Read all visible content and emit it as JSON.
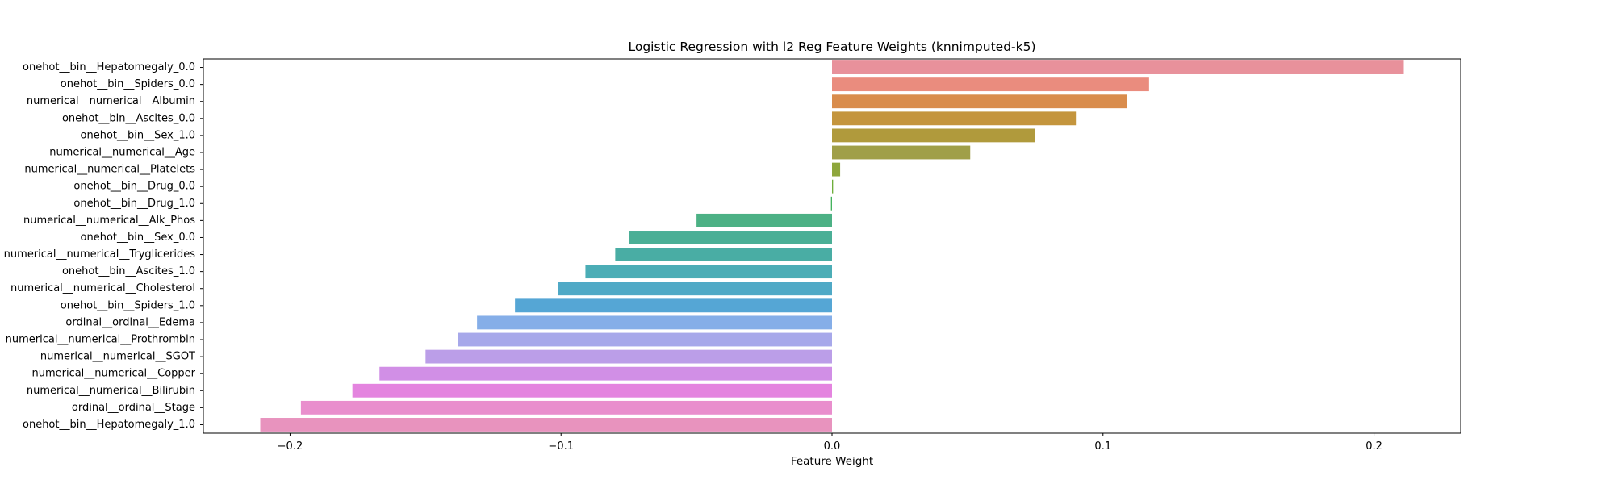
{
  "chart_data": {
    "type": "bar",
    "orientation": "horizontal",
    "title": "Logistic Regression with l2 Reg Feature Weights (knnimputed-k5)",
    "xlabel": "Feature Weight",
    "ylabel": "",
    "xlim": [
      -0.232,
      0.232
    ],
    "xticks": [
      -0.2,
      -0.1,
      0.0,
      0.1,
      0.2
    ],
    "xtick_labels": [
      "−0.2",
      "−0.1",
      "0.0",
      "0.1",
      "0.2"
    ],
    "grid": false,
    "categories": [
      "onehot__bin__Hepatomegaly_0.0",
      "onehot__bin__Spiders_0.0",
      "numerical__numerical__Albumin",
      "onehot__bin__Ascites_0.0",
      "onehot__bin__Sex_1.0",
      "numerical__numerical__Age",
      "numerical__numerical__Platelets",
      "onehot__bin__Drug_0.0",
      "onehot__bin__Drug_1.0",
      "numerical__numerical__Alk_Phos",
      "onehot__bin__Sex_0.0",
      "numerical__numerical__Tryglicerides",
      "onehot__bin__Ascites_1.0",
      "numerical__numerical__Cholesterol",
      "onehot__bin__Spiders_1.0",
      "ordinal__ordinal__Edema",
      "numerical__numerical__Prothrombin",
      "numerical__numerical__SGOT",
      "numerical__numerical__Copper",
      "numerical__numerical__Bilirubin",
      "ordinal__ordinal__Stage",
      "onehot__bin__Hepatomegaly_1.0"
    ],
    "values": [
      0.211,
      0.117,
      0.109,
      0.09,
      0.075,
      0.051,
      0.003,
      0.0004,
      -0.0004,
      -0.05,
      -0.075,
      -0.08,
      -0.091,
      -0.101,
      -0.117,
      -0.131,
      -0.138,
      -0.15,
      -0.167,
      -0.177,
      -0.196,
      -0.211
    ],
    "colors": [
      "#e8919b",
      "#ea8c7e",
      "#d98c4c",
      "#c4953d",
      "#b09a3c",
      "#a09f48",
      "#8ea63c",
      "#6fae3b",
      "#45b35e",
      "#4cb185",
      "#4aaf96",
      "#49ada4",
      "#4badb6",
      "#4fa9c6",
      "#55a6d5",
      "#85aee8",
      "#a7a8ea",
      "#bb9ee8",
      "#d18fe6",
      "#e484df",
      "#e98ecd",
      "#e893be"
    ]
  }
}
